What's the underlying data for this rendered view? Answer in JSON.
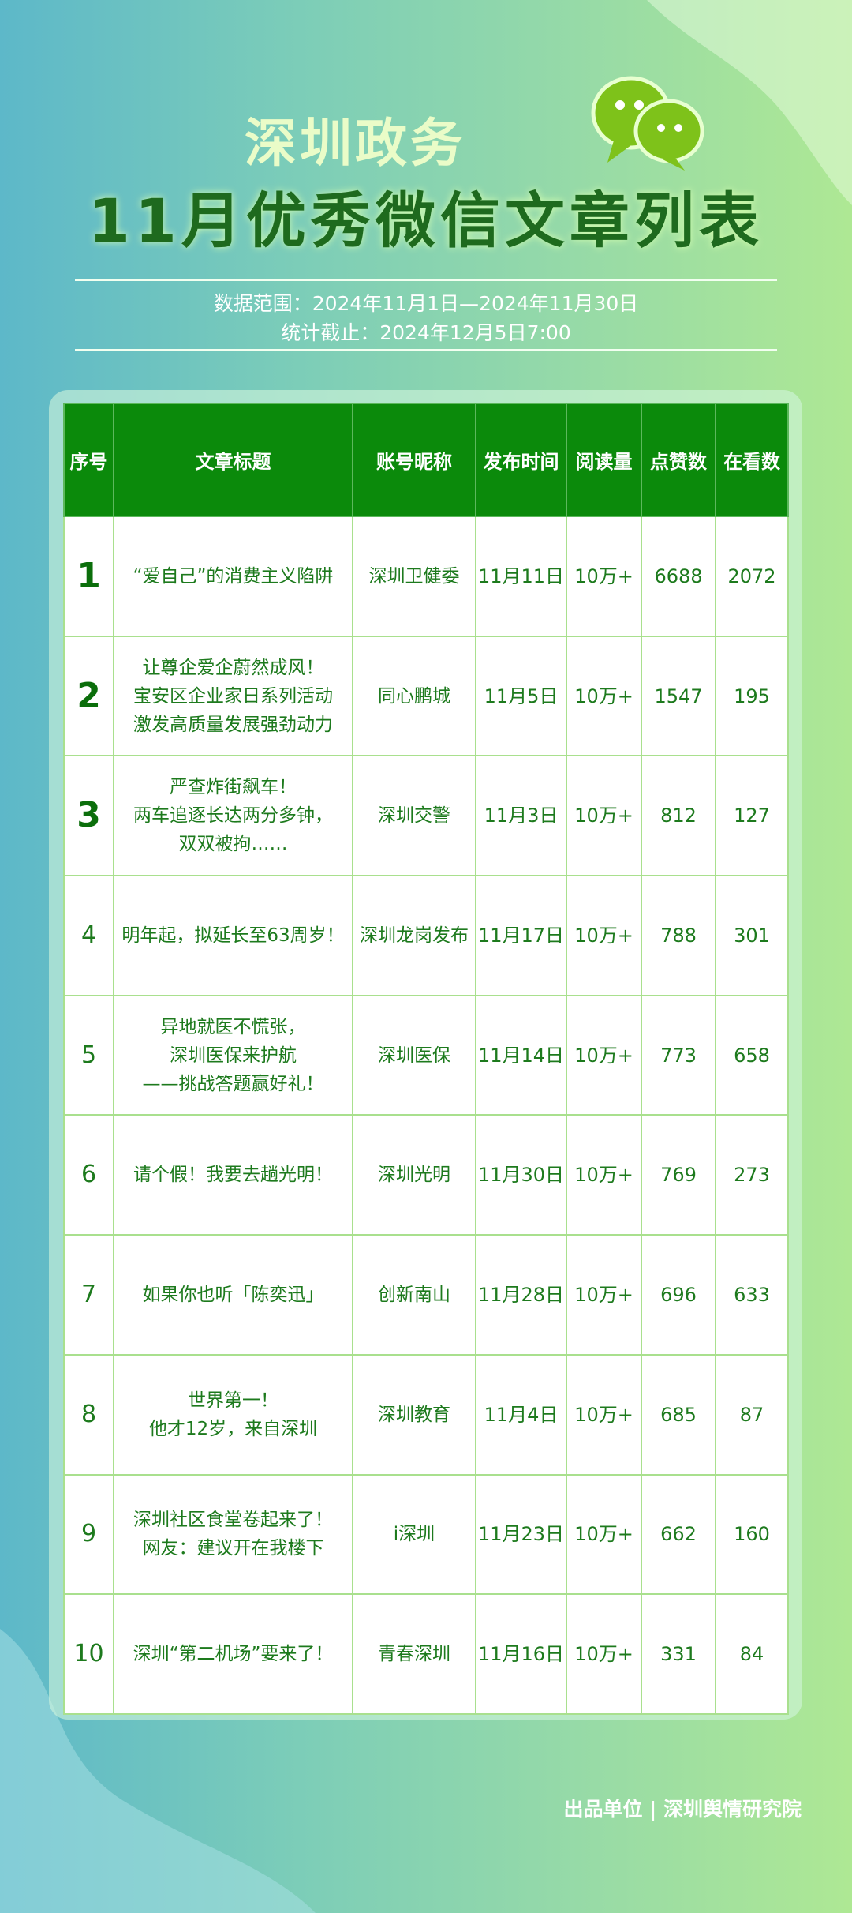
{
  "header": {
    "brand": "深圳政务",
    "title": "11月优秀微信文章列表",
    "range": "数据范围：2024年11月1日—2024年11月30日",
    "cutoff": "统计截止：2024年12月5日7:00",
    "logo_icon": "wechat-icon"
  },
  "table": {
    "columns": [
      "序号",
      "文章标题",
      "账号昵称",
      "发布时间",
      "阅读量",
      "点赞数",
      "在看数"
    ],
    "rows": [
      {
        "rank": "1",
        "title": "“爱自己”的消费主义陷阱",
        "account": "深圳卫健委",
        "date": "11月11日",
        "reads": "10万+",
        "likes": "6688",
        "watching": "2072"
      },
      {
        "rank": "2",
        "title": "让尊企爱企蔚然成风！\n宝安区企业家日系列活动\n激发高质量发展强劲动力",
        "account": "同心鹏城",
        "date": "11月5日",
        "reads": "10万+",
        "likes": "1547",
        "watching": "195"
      },
      {
        "rank": "3",
        "title": "严查炸街飙车！\n两车追逐长达两分多钟，\n双双被拘……",
        "account": "深圳交警",
        "date": "11月3日",
        "reads": "10万+",
        "likes": "812",
        "watching": "127"
      },
      {
        "rank": "4",
        "title": "明年起，拟延长至63周岁！",
        "account": "深圳龙岗发布",
        "date": "11月17日",
        "reads": "10万+",
        "likes": "788",
        "watching": "301"
      },
      {
        "rank": "5",
        "title": "异地就医不慌张，\n深圳医保来护航\n——挑战答题赢好礼！",
        "account": "深圳医保",
        "date": "11月14日",
        "reads": "10万+",
        "likes": "773",
        "watching": "658"
      },
      {
        "rank": "6",
        "title": "请个假！我要去趟光明！",
        "account": "深圳光明",
        "date": "11月30日",
        "reads": "10万+",
        "likes": "769",
        "watching": "273"
      },
      {
        "rank": "7",
        "title": "如果你也听「陈奕迅」",
        "account": "创新南山",
        "date": "11月28日",
        "reads": "10万+",
        "likes": "696",
        "watching": "633"
      },
      {
        "rank": "8",
        "title": "世界第一！\n他才12岁，来自深圳",
        "account": "深圳教育",
        "date": "11月4日",
        "reads": "10万+",
        "likes": "685",
        "watching": "87"
      },
      {
        "rank": "9",
        "title": "深圳社区食堂卷起来了！\n网友：建议开在我楼下",
        "account": "i深圳",
        "date": "11月23日",
        "reads": "10万+",
        "likes": "662",
        "watching": "160"
      },
      {
        "rank": "10",
        "title": "深圳“第二机场”要来了！",
        "account": "青春深圳",
        "date": "11月16日",
        "reads": "10万+",
        "likes": "331",
        "watching": "84"
      }
    ]
  },
  "footer": "出品单位 | 深圳舆情研究院"
}
